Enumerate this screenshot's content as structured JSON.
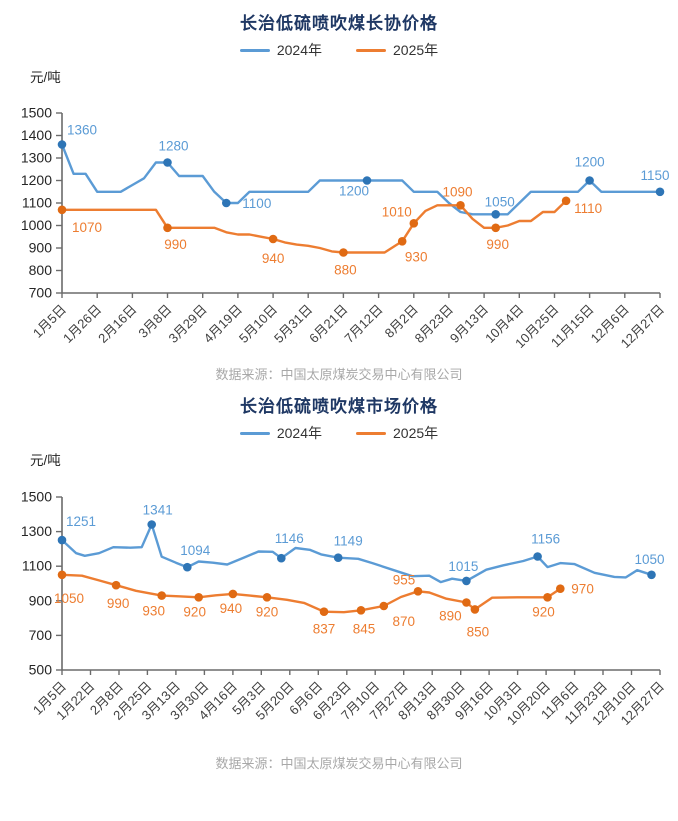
{
  "chart_data": [
    {
      "type": "line",
      "title": "长治低硫喷吹煤长协价格",
      "unit_label": "元/吨",
      "source": "数据来源：中国太原煤炭交易中心有限公司",
      "legend_position": "top",
      "grid": false,
      "ylim": [
        700,
        1500
      ],
      "y_ticks": [
        1500,
        1400,
        1300,
        1200,
        1100,
        1000,
        900,
        800,
        700
      ],
      "x_tick_labels": [
        "1月5日",
        "1月26日",
        "2月16日",
        "3月8日",
        "3月29日",
        "4月19日",
        "5月10日",
        "5月31日",
        "6月21日",
        "7月12日",
        "8月2日",
        "8月23日",
        "9月13日",
        "10月4日",
        "10月25日",
        "11月15日",
        "12月6日",
        "12月27日"
      ],
      "series": [
        {
          "name": "2024年",
          "color": "#5b9bd5",
          "marker_color": "#2e75b6",
          "points": [
            [
              0,
              1360
            ],
            [
              0.33,
              1230
            ],
            [
              0.67,
              1230
            ],
            [
              1,
              1150
            ],
            [
              1.33,
              1150
            ],
            [
              1.67,
              1150
            ],
            [
              2,
              1180
            ],
            [
              2.33,
              1210
            ],
            [
              2.67,
              1280
            ],
            [
              3,
              1280
            ],
            [
              3.33,
              1220
            ],
            [
              3.67,
              1220
            ],
            [
              4,
              1220
            ],
            [
              4.33,
              1150
            ],
            [
              4.67,
              1100
            ],
            [
              5,
              1100
            ],
            [
              5.33,
              1150
            ],
            [
              5.67,
              1150
            ],
            [
              6,
              1150
            ],
            [
              6.33,
              1150
            ],
            [
              6.67,
              1150
            ],
            [
              7,
              1150
            ],
            [
              7.33,
              1200
            ],
            [
              7.67,
              1200
            ],
            [
              8,
              1200
            ],
            [
              8.33,
              1200
            ],
            [
              8.67,
              1200
            ],
            [
              9,
              1200
            ],
            [
              9.33,
              1200
            ],
            [
              9.67,
              1200
            ],
            [
              10,
              1150
            ],
            [
              10.33,
              1150
            ],
            [
              10.67,
              1150
            ],
            [
              11,
              1100
            ],
            [
              11.33,
              1060
            ],
            [
              11.67,
              1050
            ],
            [
              12,
              1050
            ],
            [
              12.33,
              1050
            ],
            [
              12.67,
              1050
            ],
            [
              13,
              1100
            ],
            [
              13.33,
              1150
            ],
            [
              13.67,
              1150
            ],
            [
              14,
              1150
            ],
            [
              14.33,
              1150
            ],
            [
              14.67,
              1150
            ],
            [
              15,
              1200
            ],
            [
              15.33,
              1150
            ],
            [
              15.67,
              1150
            ],
            [
              16,
              1150
            ],
            [
              16.33,
              1150
            ],
            [
              16.67,
              1150
            ],
            [
              17,
              1150
            ]
          ],
          "markers": [
            {
              "t": 0,
              "v": 1360,
              "dx": 5,
              "dy": -10,
              "a": "start"
            },
            {
              "t": 3,
              "v": 1280,
              "dx": 6,
              "dy": -12
            },
            {
              "t": 4.67,
              "v": 1100,
              "dx": 16,
              "dy": 5,
              "a": "start"
            },
            {
              "t": 8.67,
              "v": 1200,
              "dx": -13,
              "dy": 15
            },
            {
              "t": 12.33,
              "v": 1050,
              "dx": 4,
              "dy": -8
            },
            {
              "t": 15,
              "v": 1200,
              "dx": 0,
              "dy": -14
            },
            {
              "t": 17,
              "v": 1150,
              "dx": -5,
              "dy": -12
            }
          ]
        },
        {
          "name": "2025年",
          "color": "#ed7d31",
          "marker_color": "#e06a13",
          "points": [
            [
              0,
              1070
            ],
            [
              2.67,
              1070
            ],
            [
              3,
              990
            ],
            [
              4.33,
              990
            ],
            [
              4.67,
              970
            ],
            [
              5,
              960
            ],
            [
              5.33,
              960
            ],
            [
              5.67,
              950
            ],
            [
              6,
              940
            ],
            [
              6.33,
              925
            ],
            [
              6.67,
              915
            ],
            [
              7,
              910
            ],
            [
              7.33,
              900
            ],
            [
              7.67,
              885
            ],
            [
              8,
              880
            ],
            [
              9.17,
              880
            ],
            [
              9.67,
              930
            ],
            [
              10,
              1010
            ],
            [
              10.33,
              1065
            ],
            [
              10.67,
              1090
            ],
            [
              11.33,
              1090
            ],
            [
              11.67,
              1030
            ],
            [
              12,
              990
            ],
            [
              12.33,
              990
            ],
            [
              12.67,
              1000
            ],
            [
              13,
              1020
            ],
            [
              13.33,
              1020
            ],
            [
              13.67,
              1060
            ],
            [
              14,
              1060
            ],
            [
              14.33,
              1110
            ]
          ],
          "markers": [
            {
              "t": 0,
              "v": 1070,
              "dx": 10,
              "dy": 22,
              "a": "start"
            },
            {
              "t": 3,
              "v": 990,
              "dx": 8,
              "dy": 21
            },
            {
              "t": 6,
              "v": 940,
              "dx": 0,
              "dy": 24
            },
            {
              "t": 8,
              "v": 880,
              "dx": 2,
              "dy": 22
            },
            {
              "t": 9.67,
              "v": 930,
              "dx": 14,
              "dy": 20
            },
            {
              "t": 10,
              "v": 1010,
              "dx": -17,
              "dy": -7
            },
            {
              "t": 11.33,
              "v": 1090,
              "dx": -3,
              "dy": -9
            },
            {
              "t": 12.33,
              "v": 990,
              "dx": 2,
              "dy": 21
            },
            {
              "t": 14.33,
              "v": 1110,
              "dx": 8,
              "dy": 12,
              "a": "start"
            }
          ]
        }
      ]
    },
    {
      "type": "line",
      "title": "长治低硫喷吹煤市场价格",
      "unit_label": "元/吨",
      "source": "数据来源：中国太原煤炭交易中心有限公司",
      "legend_position": "top",
      "grid": false,
      "ylim": [
        500,
        1500
      ],
      "y_ticks": [
        1500,
        1300,
        1100,
        900,
        700,
        500
      ],
      "x_tick_labels": [
        "1月5日",
        "1月22日",
        "2月8日",
        "2月25日",
        "3月13日",
        "3月30日",
        "4月16日",
        "5月3日",
        "5月20日",
        "6月6日",
        "6月23日",
        "7月10日",
        "7月27日",
        "8月13日",
        "8月30日",
        "9月16日",
        "10月3日",
        "10月20日",
        "11月6日",
        "11月23日",
        "12月10日",
        "12月27日"
      ],
      "series": [
        {
          "name": "2024年",
          "color": "#5b9bd5",
          "marker_color": "#2e75b6",
          "points": [
            [
              0,
              1251
            ],
            [
              0.5,
              1175
            ],
            [
              0.8,
              1160
            ],
            [
              1.3,
              1175
            ],
            [
              1.8,
              1210
            ],
            [
              2.4,
              1207
            ],
            [
              2.8,
              1210
            ],
            [
              3.15,
              1341
            ],
            [
              3.5,
              1155
            ],
            [
              4,
              1120
            ],
            [
              4.4,
              1094
            ],
            [
              4.8,
              1127
            ],
            [
              5.3,
              1120
            ],
            [
              5.8,
              1110
            ],
            [
              6.4,
              1150
            ],
            [
              6.9,
              1185
            ],
            [
              7.4,
              1183
            ],
            [
              7.7,
              1146
            ],
            [
              8.2,
              1205
            ],
            [
              8.7,
              1195
            ],
            [
              9.1,
              1168
            ],
            [
              9.7,
              1149
            ],
            [
              10.4,
              1143
            ],
            [
              10.9,
              1118
            ],
            [
              11.6,
              1080
            ],
            [
              12.3,
              1042
            ],
            [
              12.9,
              1045
            ],
            [
              13.3,
              1008
            ],
            [
              13.7,
              1028
            ],
            [
              14.2,
              1015
            ],
            [
              14.9,
              1080
            ],
            [
              15.5,
              1105
            ],
            [
              16.2,
              1130
            ],
            [
              16.7,
              1156
            ],
            [
              17.05,
              1095
            ],
            [
              17.5,
              1118
            ],
            [
              18,
              1112
            ],
            [
              18.7,
              1062
            ],
            [
              19.4,
              1038
            ],
            [
              19.8,
              1035
            ],
            [
              20.2,
              1077
            ],
            [
              20.7,
              1050
            ]
          ],
          "markers": [
            {
              "t": 0,
              "v": 1251,
              "dx": 4,
              "dy": -14,
              "a": "start"
            },
            {
              "t": 3.15,
              "v": 1341,
              "dx": 6,
              "dy": -10
            },
            {
              "t": 4.4,
              "v": 1094,
              "dx": 8,
              "dy": -12
            },
            {
              "t": 7.7,
              "v": 1146,
              "dx": 8,
              "dy": -15
            },
            {
              "t": 9.7,
              "v": 1149,
              "dx": 10,
              "dy": -12
            },
            {
              "t": 14.2,
              "v": 1015,
              "dx": -3,
              "dy": -10
            },
            {
              "t": 16.7,
              "v": 1156,
              "dx": 8,
              "dy": -13
            },
            {
              "t": 20.7,
              "v": 1050,
              "dx": -2,
              "dy": -11
            }
          ]
        },
        {
          "name": "2025年",
          "color": "#ed7d31",
          "marker_color": "#e06a13",
          "points": [
            [
              0,
              1050
            ],
            [
              0.7,
              1045
            ],
            [
              1.3,
              1018
            ],
            [
              1.9,
              990
            ],
            [
              2.6,
              958
            ],
            [
              3.5,
              930
            ],
            [
              4.1,
              926
            ],
            [
              4.8,
              920
            ],
            [
              5.4,
              932
            ],
            [
              6,
              940
            ],
            [
              6.6,
              930
            ],
            [
              7.2,
              920
            ],
            [
              7.9,
              906
            ],
            [
              8.5,
              888
            ],
            [
              9.2,
              837
            ],
            [
              9.9,
              834
            ],
            [
              10.5,
              845
            ],
            [
              11.3,
              870
            ],
            [
              11.9,
              922
            ],
            [
              12.5,
              955
            ],
            [
              12.9,
              948
            ],
            [
              13.5,
              912
            ],
            [
              14.2,
              890
            ],
            [
              14.5,
              850
            ],
            [
              15.1,
              918
            ],
            [
              16,
              920
            ],
            [
              17.05,
              920
            ],
            [
              17.5,
              970
            ]
          ],
          "markers": [
            {
              "t": 0,
              "v": 1050,
              "dx": 7,
              "dy": 28
            },
            {
              "t": 1.9,
              "v": 990,
              "dx": 2,
              "dy": 23
            },
            {
              "t": 3.5,
              "v": 930,
              "dx": -8,
              "dy": 20
            },
            {
              "t": 4.8,
              "v": 920,
              "dx": -4,
              "dy": 19
            },
            {
              "t": 6,
              "v": 940,
              "dx": -2,
              "dy": 19
            },
            {
              "t": 7.2,
              "v": 920,
              "dx": 0,
              "dy": 19
            },
            {
              "t": 9.2,
              "v": 837,
              "dx": 0,
              "dy": 22
            },
            {
              "t": 10.5,
              "v": 845,
              "dx": 3,
              "dy": 23
            },
            {
              "t": 11.3,
              "v": 870,
              "dx": 20,
              "dy": 20
            },
            {
              "t": 12.5,
              "v": 955,
              "dx": -14,
              "dy": -7
            },
            {
              "t": 14.2,
              "v": 890,
              "dx": -16,
              "dy": 18
            },
            {
              "t": 14.5,
              "v": 850,
              "dx": 3,
              "dy": 27
            },
            {
              "t": 17.05,
              "v": 920,
              "dx": -4,
              "dy": 19
            },
            {
              "t": 17.5,
              "v": 970,
              "dx": 11,
              "dy": 5,
              "a": "start"
            }
          ]
        }
      ]
    }
  ]
}
